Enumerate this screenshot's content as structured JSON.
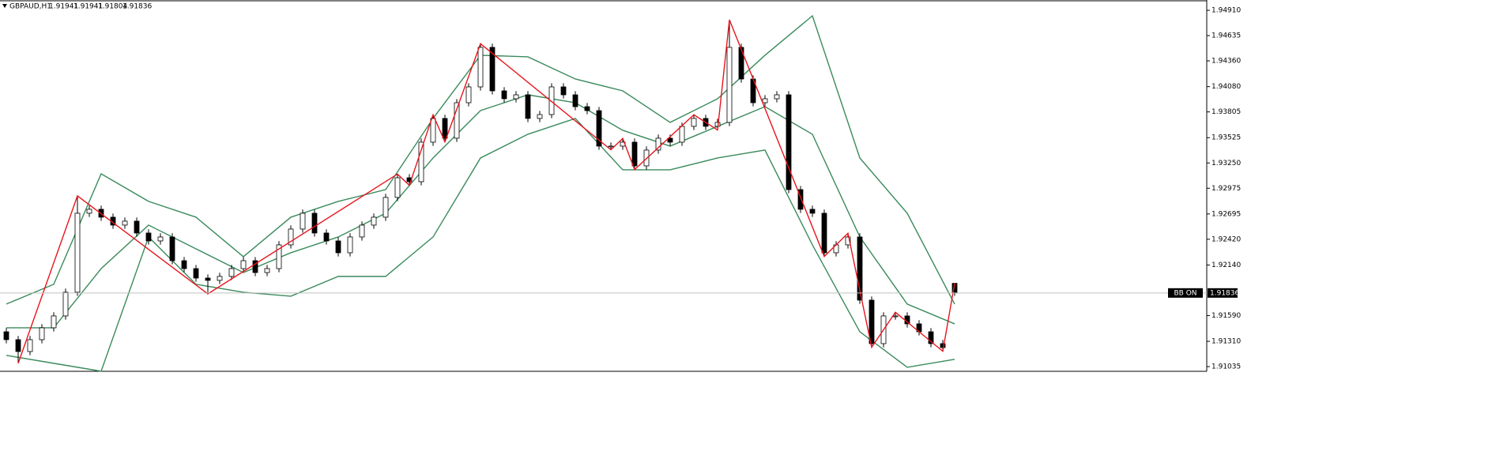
{
  "chart_data": {
    "type": "candlestick",
    "title": "GBPAUD,H1",
    "label": "BB ON",
    "ylim": [
      1.90984,
      1.95022
    ],
    "yticks": [
      {
        "value": 1.9491,
        "label": "1.94910"
      },
      {
        "value": 1.94635,
        "label": "1.94635"
      },
      {
        "value": 1.9436,
        "label": "1.94360"
      },
      {
        "value": 1.9408,
        "label": "1.94080"
      },
      {
        "value": 1.93805,
        "label": "1.93805"
      },
      {
        "value": 1.93525,
        "label": "1.93525"
      },
      {
        "value": 1.9325,
        "label": "1.93250"
      },
      {
        "value": 1.92975,
        "label": "1.92975"
      },
      {
        "value": 1.92695,
        "label": "1.92695"
      },
      {
        "value": 1.9242,
        "label": "1.92420"
      },
      {
        "value": 1.9214,
        "label": "1.92140"
      },
      {
        "value": 1.9159,
        "label": "1.91590"
      },
      {
        "value": 1.9131,
        "label": "1.91310"
      },
      {
        "value": 1.91035,
        "label": "1.91035"
      }
    ],
    "up_color": "#ffffff",
    "down_color": "#000000",
    "band_color": "#3a8a5c",
    "zigzag_color": "#e8141c",
    "open": [
      1.91414,
      1.91328,
      1.91199,
      1.91328,
      1.91457,
      1.91586,
      1.91844,
      1.92703,
      1.92746,
      1.9266,
      1.92574,
      1.92617,
      1.92488,
      1.92402,
      1.92445,
      1.92187,
      1.92101,
      1.91998,
      1.91973,
      1.92016,
      1.92101,
      1.92187,
      1.92058,
      1.92101,
      1.92359,
      1.92531,
      1.92703,
      1.92488,
      1.92402,
      1.92273,
      1.92445,
      1.92574,
      1.9266,
      1.92875,
      1.93089,
      1.93046,
      1.93476,
      1.93734,
      1.93519,
      1.93905,
      1.94077,
      1.94507,
      1.94034,
      1.93948,
      1.93991,
      1.93734,
      1.93776,
      1.94077,
      1.93991,
      1.93862,
      1.93819,
      1.93433,
      1.93433,
      1.93476,
      1.93218,
      1.9339,
      1.93519,
      1.93476,
      1.93648,
      1.93734,
      1.93648,
      1.93691,
      1.94507,
      1.94163,
      1.93905,
      1.93948,
      1.93991,
      1.9296,
      1.92746,
      1.92703,
      1.92273,
      1.92359,
      1.92445,
      1.91758,
      1.91285,
      1.91586,
      1.91586,
      1.915,
      1.91414,
      1.91285,
      1.91941
    ],
    "high": [
      1.91454,
      1.91368,
      1.91368,
      1.91497,
      1.91626,
      1.91884,
      1.92892,
      1.92786,
      1.92786,
      1.927,
      1.92657,
      1.92657,
      1.92528,
      1.92485,
      1.92485,
      1.92227,
      1.92141,
      1.92038,
      1.92056,
      1.92141,
      1.92227,
      1.92227,
      1.92141,
      1.92399,
      1.92571,
      1.92743,
      1.92743,
      1.92528,
      1.92442,
      1.92485,
      1.92614,
      1.927,
      1.92915,
      1.93129,
      1.93129,
      1.93516,
      1.93774,
      1.93774,
      1.93945,
      1.94117,
      1.94547,
      1.94547,
      1.94074,
      1.94031,
      1.94031,
      1.93816,
      1.94117,
      1.94117,
      1.94031,
      1.93902,
      1.93859,
      1.93473,
      1.93516,
      1.93516,
      1.9343,
      1.93559,
      1.93559,
      1.93688,
      1.93774,
      1.93774,
      1.93731,
      1.94807,
      1.94547,
      1.94203,
      1.93988,
      1.94031,
      1.94031,
      1.93,
      1.92786,
      1.92743,
      1.92399,
      1.92485,
      1.92485,
      1.91798,
      1.91626,
      1.91626,
      1.91626,
      1.9154,
      1.91454,
      1.91325,
      1.91941
    ],
    "low": [
      1.91288,
      1.91071,
      1.91159,
      1.91288,
      1.91417,
      1.91546,
      1.91804,
      1.92663,
      1.9262,
      1.92534,
      1.92534,
      1.92448,
      1.92362,
      1.92362,
      1.92147,
      1.92061,
      1.91958,
      1.91826,
      1.91933,
      1.91976,
      1.92061,
      1.92018,
      1.92018,
      1.92061,
      1.92319,
      1.92491,
      1.92448,
      1.92362,
      1.92233,
      1.92233,
      1.92405,
      1.92534,
      1.9262,
      1.92835,
      1.93006,
      1.93006,
      1.93436,
      1.93479,
      1.93479,
      1.93865,
      1.94037,
      1.93994,
      1.93908,
      1.93908,
      1.93694,
      1.93694,
      1.93736,
      1.93951,
      1.93822,
      1.93779,
      1.93393,
      1.93393,
      1.93393,
      1.93178,
      1.93178,
      1.9335,
      1.93436,
      1.93436,
      1.93608,
      1.93608,
      1.93608,
      1.93651,
      1.94123,
      1.93865,
      1.93865,
      1.93908,
      1.9292,
      1.92706,
      1.92663,
      1.92233,
      1.92233,
      1.92319,
      1.91718,
      1.91245,
      1.91245,
      1.91546,
      1.9146,
      1.91374,
      1.91245,
      1.91202,
      1.91804
    ],
    "close": [
      1.91328,
      1.91199,
      1.91328,
      1.91457,
      1.91586,
      1.91844,
      1.92703,
      1.92746,
      1.9266,
      1.92574,
      1.92617,
      1.92488,
      1.92402,
      1.92445,
      1.92187,
      1.92101,
      1.91998,
      1.91973,
      1.92016,
      1.92101,
      1.92187,
      1.92058,
      1.92101,
      1.92359,
      1.92531,
      1.92703,
      1.92488,
      1.92402,
      1.92273,
      1.92445,
      1.92574,
      1.9266,
      1.92875,
      1.93089,
      1.93046,
      1.93476,
      1.93734,
      1.93519,
      1.93905,
      1.94077,
      1.94507,
      1.94034,
      1.93948,
      1.93991,
      1.93734,
      1.93776,
      1.94077,
      1.93991,
      1.93862,
      1.93819,
      1.93433,
      1.93433,
      1.93476,
      1.93218,
      1.9339,
      1.93519,
      1.93476,
      1.93648,
      1.93734,
      1.93648,
      1.93691,
      1.94507,
      1.94163,
      1.93905,
      1.93948,
      1.93991,
      1.9296,
      1.92746,
      1.92703,
      1.92273,
      1.92359,
      1.92445,
      1.91758,
      1.91285,
      1.91586,
      1.91586,
      1.915,
      1.91414,
      1.91285,
      1.91242,
      1.91836
    ],
    "band_x": [
      0,
      4,
      8,
      12,
      16,
      20,
      24,
      28,
      32,
      36,
      40,
      44,
      48,
      52,
      56,
      60,
      64,
      68,
      72,
      76,
      80
    ],
    "band_upper": [
      1.91715,
      1.9193,
      1.93132,
      1.92832,
      1.9266,
      1.9223,
      1.9266,
      1.92832,
      1.9296,
      1.93734,
      1.94421,
      1.94404,
      1.94163,
      1.94034,
      1.93691,
      1.93948,
      1.94421,
      1.9485,
      1.93304,
      1.92703,
      1.91715
    ],
    "band_middle": [
      1.91457,
      1.91457,
      1.92101,
      1.92574,
      1.92316,
      1.92058,
      1.92273,
      1.92445,
      1.92703,
      1.93304,
      1.93819,
      1.93991,
      1.93905,
      1.93605,
      1.93433,
      1.93648,
      1.93862,
      1.93562,
      1.92445,
      1.91715,
      1.915
    ],
    "band_lower": [
      1.91157,
      1.91071,
      1.90985,
      1.92445,
      1.9193,
      1.91844,
      1.91801,
      1.92016,
      1.92016,
      1.92445,
      1.93304,
      1.93562,
      1.93734,
      1.93175,
      1.93175,
      1.93304,
      1.9339,
      1.92359,
      1.91414,
      1.91028,
      1.91114
    ],
    "zigzag_x": [
      1,
      6,
      17,
      33,
      34,
      36,
      37,
      40,
      51,
      52,
      53,
      58,
      60,
      61,
      69,
      71,
      73,
      75,
      79,
      80
    ],
    "zigzag": [
      1.91071,
      1.92892,
      1.91826,
      1.93129,
      1.93006,
      1.93774,
      1.93479,
      1.94547,
      1.93393,
      1.93516,
      1.93178,
      1.93774,
      1.93608,
      1.94807,
      1.92233,
      1.92485,
      1.91245,
      1.91626,
      1.91202,
      1.91941
    ]
  }
}
